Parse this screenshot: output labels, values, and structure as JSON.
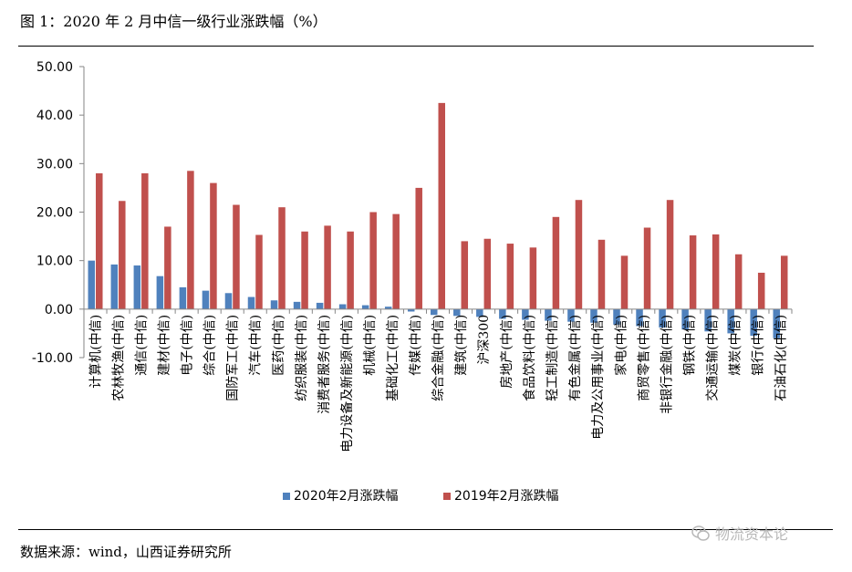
{
  "header": {
    "title": "图 1：2020 年 2 月中信一级行业涨跌幅（%）"
  },
  "footer": {
    "source": "数据来源：wind，山西证券研究所"
  },
  "watermark": {
    "text": "物流资本论",
    "icon": "wechat-logo-icon"
  },
  "chart_data": {
    "type": "bar",
    "title": "",
    "xlabel": "",
    "ylabel": "",
    "ylim": [
      -10,
      50
    ],
    "yticks": [
      "50.00",
      "40.00",
      "30.00",
      "20.00",
      "10.00",
      "0.00",
      "-10.00"
    ],
    "grid": false,
    "legend_position": "bottom",
    "categories": [
      "计算机(中信)",
      "农林牧渔(中信)",
      "通信(中信)",
      "建材(中信)",
      "电子(中信)",
      "综合(中信)",
      "国防军工(中信)",
      "汽车(中信)",
      "医药(中信)",
      "纺织服装(中信)",
      "消费者服务(中信)",
      "电力设备及新能源(中信)",
      "机械(中信)",
      "基础化工(中信)",
      "传媒(中信)",
      "综合金融(中信)",
      "建筑(中信)",
      "沪深300",
      "房地产(中信)",
      "食品饮料(中信)",
      "轻工制造(中信)",
      "有色金属(中信)",
      "电力及公用事业(中信)",
      "家电(中信)",
      "商贸零售(中信)",
      "非银行金融(中信)",
      "钢铁(中信)",
      "交通运输(中信)",
      "煤炭(中信)",
      "银行(中信)",
      "石油石化(中信)"
    ],
    "series": [
      {
        "name": "2020年2月涨跌幅",
        "color": "#4f81bd",
        "values": [
          10.0,
          9.2,
          9.0,
          6.8,
          4.5,
          3.8,
          3.3,
          2.5,
          1.8,
          1.5,
          1.3,
          1.0,
          0.8,
          0.5,
          -0.5,
          -1.2,
          -1.4,
          -1.6,
          -2.0,
          -2.2,
          -2.4,
          -2.6,
          -2.8,
          -3.2,
          -3.5,
          -3.8,
          -4.2,
          -4.6,
          -5.0,
          -5.5,
          -6.0
        ]
      },
      {
        "name": "2019年2月涨跌幅",
        "color": "#c0504d",
        "values": [
          28.0,
          22.3,
          28.0,
          17.0,
          28.5,
          26.0,
          21.5,
          15.3,
          21.0,
          16.0,
          17.2,
          16.0,
          20.0,
          19.6,
          25.0,
          42.5,
          14.0,
          14.5,
          13.5,
          12.7,
          19.0,
          22.5,
          14.3,
          11.0,
          16.8,
          22.5,
          15.2,
          15.4,
          11.3,
          7.5,
          11.0
        ]
      }
    ]
  }
}
